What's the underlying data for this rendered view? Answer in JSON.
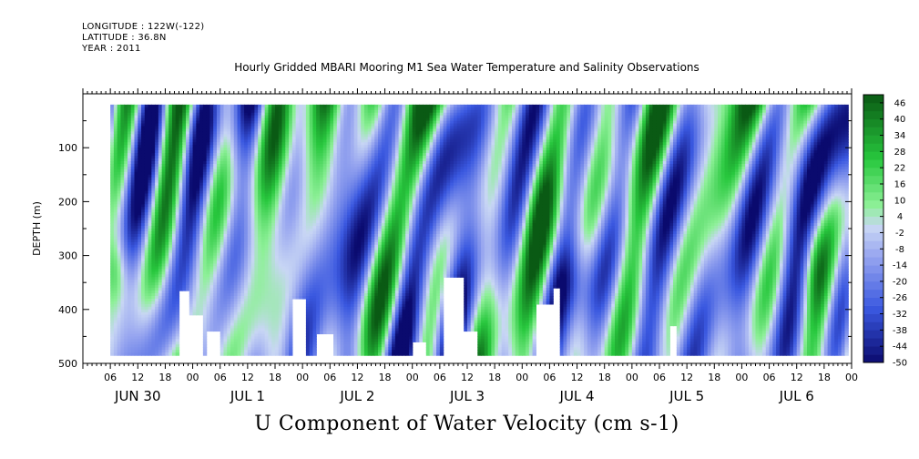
{
  "header": {
    "longitude": "LONGITUDE : 122W(-122)",
    "latitude": "LATITUDE : 36.8N",
    "year": "YEAR : 2011"
  },
  "chart_data": {
    "type": "heatmap",
    "title": "Hourly Gridded MBARI Mooring M1 Sea Water Temperature and Salinity Observations",
    "xlabel": "U Component of Water Velocity (cm s-1)",
    "ylabel": "DEPTH (m)",
    "y_ticks": [
      100,
      200,
      300,
      400,
      500
    ],
    "y_range": [
      500,
      0
    ],
    "x_range_hours": [
      0,
      168
    ],
    "x_hour_ticks": [
      "06",
      "12",
      "18",
      "00",
      "06",
      "12",
      "18",
      "00",
      "06",
      "12",
      "18",
      "00",
      "06",
      "12",
      "18",
      "00",
      "06",
      "12",
      "18",
      "00",
      "06",
      "12",
      "18",
      "00",
      "06",
      "12",
      "18",
      "00"
    ],
    "x_day_labels": [
      "JUN 30",
      "JUL  1",
      "JUL  2",
      "JUL  3",
      "JUL  4",
      "JUL  5",
      "JUL  6"
    ],
    "colorbar_labels": [
      "46",
      "40",
      "34",
      "28",
      "22",
      "16",
      "10",
      "4",
      "-2",
      "-8",
      "-14",
      "-20",
      "-26",
      "-32",
      "-38",
      "-44",
      "-50"
    ],
    "color_range": [
      -50,
      49
    ],
    "colors": {
      "strong_negative": "#0a0a6e",
      "negative": "#3a58e0",
      "weak_negative": "#9aa8f0",
      "zero": "#c8d6f4",
      "weak_positive": "#8ef098",
      "positive": "#28c83e",
      "strong_positive": "#0a5a14"
    }
  }
}
